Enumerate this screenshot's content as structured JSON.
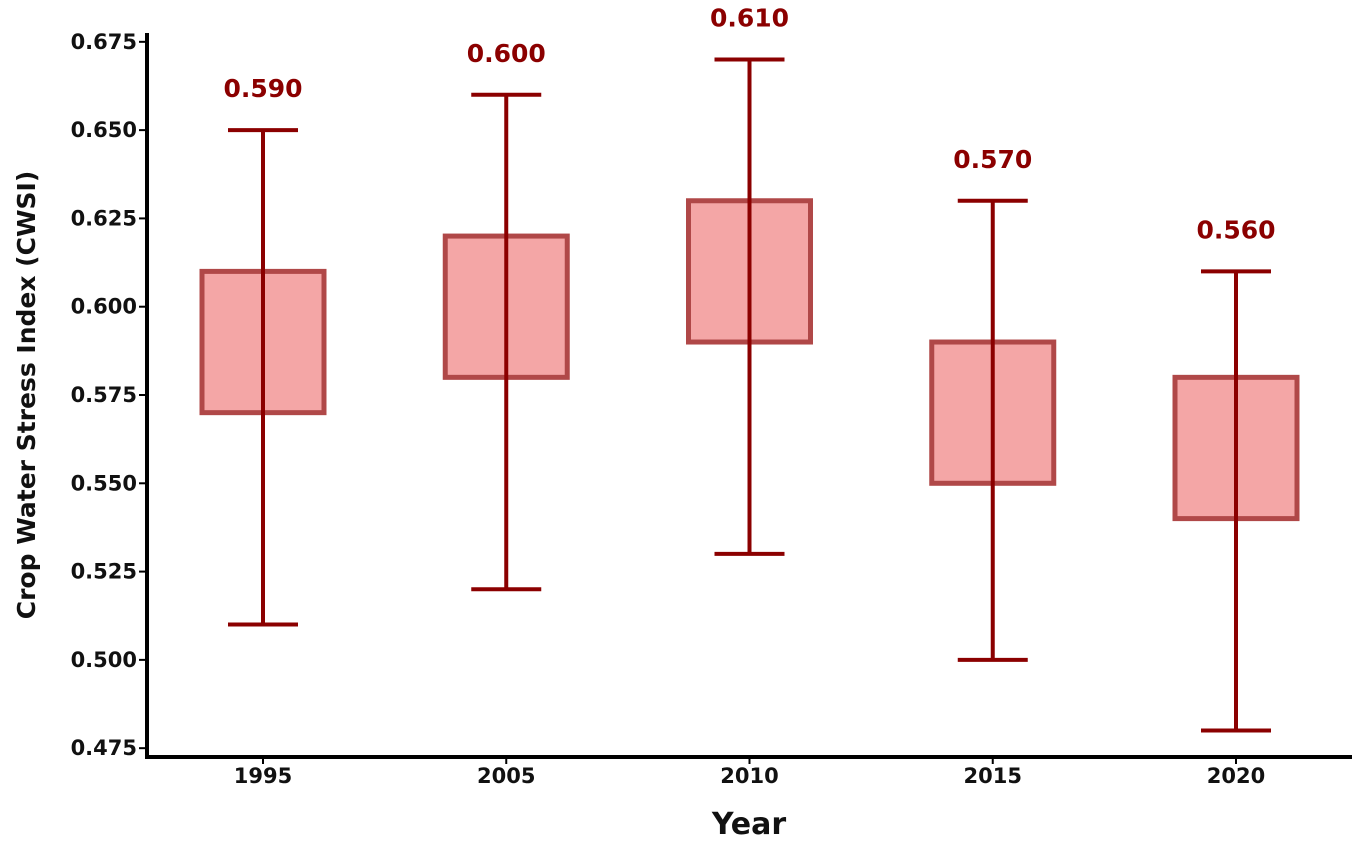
{
  "chart_data": {
    "type": "box",
    "title": "",
    "xlabel": "Year",
    "ylabel": "Crop Water Stress Index (CWSI)",
    "categories": [
      "1995",
      "2005",
      "2010",
      "2015",
      "2020"
    ],
    "boxes": [
      {
        "category": "1995",
        "whisker_low": 0.51,
        "q1": 0.57,
        "q3": 0.61,
        "whisker_high": 0.65,
        "label": "0.590"
      },
      {
        "category": "2005",
        "whisker_low": 0.52,
        "q1": 0.58,
        "q3": 0.62,
        "whisker_high": 0.66,
        "label": "0.600"
      },
      {
        "category": "2010",
        "whisker_low": 0.53,
        "q1": 0.59,
        "q3": 0.63,
        "whisker_high": 0.67,
        "label": "0.610"
      },
      {
        "category": "2015",
        "whisker_low": 0.5,
        "q1": 0.55,
        "q3": 0.59,
        "whisker_high": 0.63,
        "label": "0.570"
      },
      {
        "category": "2020",
        "whisker_low": 0.48,
        "q1": 0.54,
        "q3": 0.58,
        "whisker_high": 0.61,
        "label": "0.560"
      }
    ],
    "yticks": [
      "0.475",
      "0.500",
      "0.525",
      "0.550",
      "0.575",
      "0.600",
      "0.625",
      "0.650",
      "0.675"
    ],
    "ylim": [
      0.4725,
      0.6775
    ],
    "grid": false,
    "colors": {
      "box_fill": "#f4a6a6",
      "box_edge": "#b04848",
      "whisker": "#8b0000",
      "value_label": "#8b0000",
      "axis": "#000000"
    }
  }
}
